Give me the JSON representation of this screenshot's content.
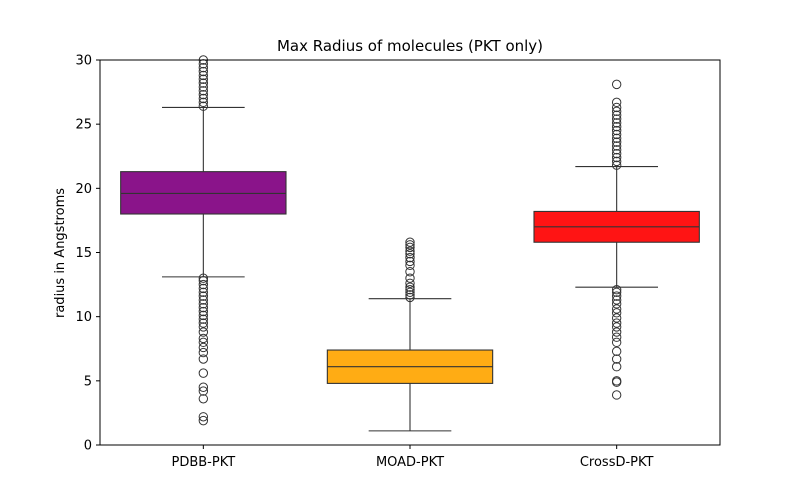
{
  "chart_data": {
    "type": "box",
    "title": "Max Radius of molecules (PKT only)",
    "xlabel": "",
    "ylabel": "radius in Angstroms",
    "ylim": [
      0,
      30
    ],
    "yticks": [
      0,
      5,
      10,
      15,
      20,
      25,
      30
    ],
    "grid": false,
    "categories": [
      "PDBB-PKT",
      "MOAD-PKT",
      "CrossD-PKT"
    ],
    "boxes": [
      {
        "category": "PDBB-PKT",
        "color": "#800080",
        "whisker_low": 13.1,
        "q1": 18.0,
        "median": 19.6,
        "q3": 21.3,
        "whisker_high": 26.3,
        "outliers": [
          1.9,
          2.2,
          3.6,
          4.2,
          4.5,
          5.6,
          6.7,
          7.2,
          7.6,
          8.0,
          8.3,
          8.8,
          9.2,
          9.5,
          9.8,
          10.1,
          10.4,
          10.7,
          11.0,
          11.3,
          11.6,
          11.9,
          12.2,
          12.5,
          12.8,
          13.0,
          26.4,
          26.7,
          27.0,
          27.3,
          27.6,
          27.9,
          28.2,
          28.5,
          28.8,
          29.1,
          29.4,
          29.7,
          30.0
        ]
      },
      {
        "category": "MOAD-PKT",
        "color": "#FFA500",
        "whisker_low": 1.1,
        "q1": 4.8,
        "median": 6.1,
        "q3": 7.4,
        "whisker_high": 11.4,
        "outliers": [
          11.5,
          11.7,
          11.9,
          12.1,
          12.3,
          12.6,
          13.0,
          13.5,
          14.0,
          14.3,
          14.6,
          14.9,
          15.1,
          15.4,
          15.6,
          15.8
        ]
      },
      {
        "category": "CrossD-PKT",
        "color": "#FF0000",
        "whisker_low": 12.3,
        "q1": 15.8,
        "median": 17.0,
        "q3": 18.2,
        "whisker_high": 21.7,
        "outliers": [
          3.9,
          4.9,
          5.0,
          6.1,
          6.7,
          7.3,
          8.0,
          8.4,
          8.8,
          9.2,
          9.5,
          9.9,
          10.3,
          10.6,
          11.0,
          11.3,
          11.6,
          11.9,
          12.1,
          21.8,
          22.1,
          22.4,
          22.7,
          23.0,
          23.3,
          23.6,
          23.9,
          24.2,
          24.5,
          24.8,
          25.1,
          25.4,
          25.7,
          26.0,
          26.3,
          26.7,
          28.1
        ]
      }
    ]
  }
}
